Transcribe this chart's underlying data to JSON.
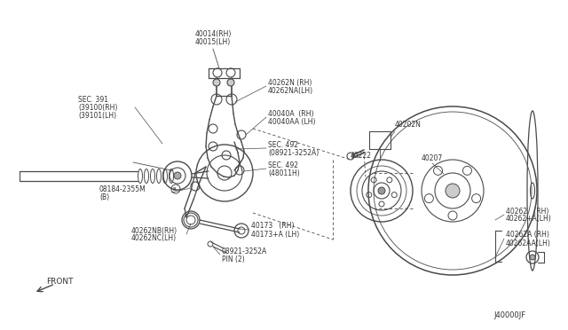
{
  "bg_color": "#ffffff",
  "line_color": "#4a4a4a",
  "text_color": "#333333",
  "fig_width": 6.4,
  "fig_height": 3.72,
  "dpi": 100,
  "footer": "J40000JF",
  "labels": {
    "top_center": [
      "40014(RH)",
      "40015(LH)"
    ],
    "sec391": [
      "SEC. 391",
      "(39100(RH)",
      "(39101(LH)"
    ],
    "bolt1": [
      "40262N (RH)",
      "40262NA(LH)"
    ],
    "arm": [
      "40040A  (RH)",
      "40040AA (LH)"
    ],
    "sec492a": [
      "SEC. 492",
      "(08921-3252A)"
    ],
    "sec492b": [
      "SEC. 492",
      "(48011H)"
    ],
    "bolt2": [
      "08184-2355M",
      "(B)"
    ],
    "lower_arm": [
      "40173   (RH)",
      "40173+A (LH)"
    ],
    "pin": [
      "08921-3252A",
      "PIN (2)"
    ],
    "bolt3": [
      "40262NB(RH)",
      "40262NC(LH)"
    ],
    "front": "FRONT",
    "hub_sensor": "40202N",
    "abs": "40222",
    "rotor_label": "40207",
    "bolt_rotor": [
      "40262   (RH)",
      "40262+A(LH)"
    ],
    "bolt_rotor2": [
      "40262A (RH)",
      "40262AA(LH)"
    ]
  }
}
